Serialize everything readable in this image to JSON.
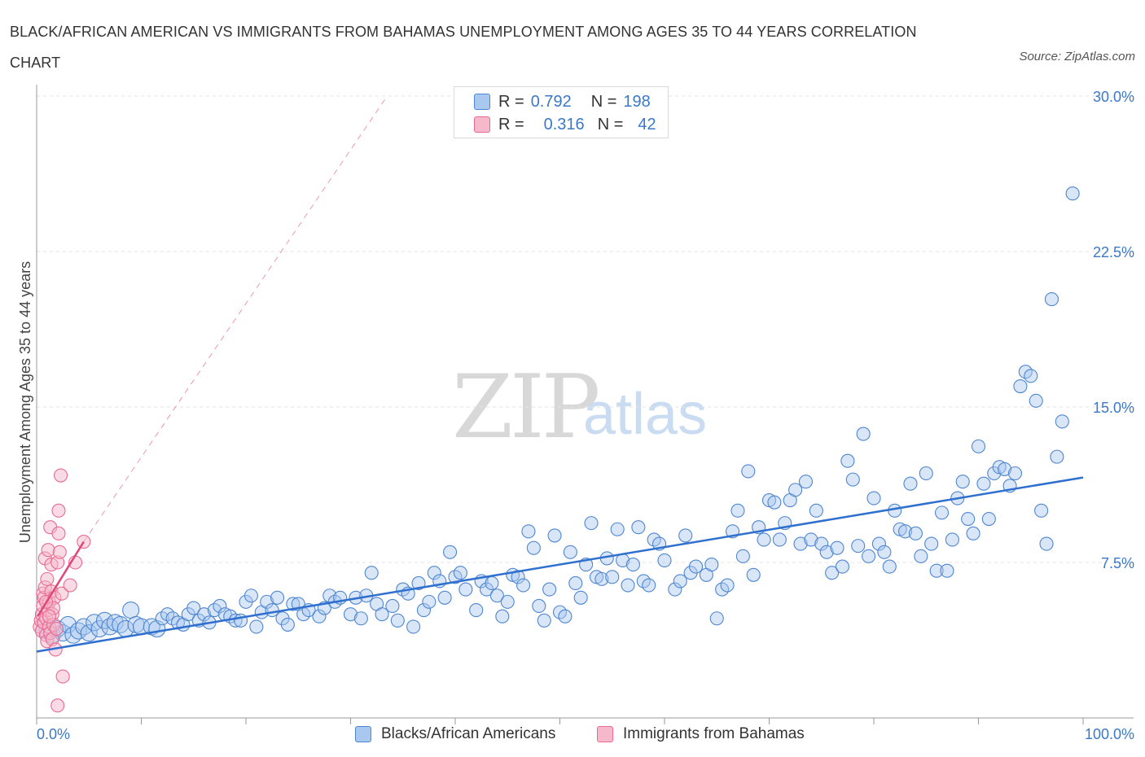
{
  "header": {
    "title": "BLACK/AFRICAN AMERICAN VS IMMIGRANTS FROM BAHAMAS UNEMPLOYMENT AMONG AGES 35 TO 44 YEARS CORRELATION CHART",
    "source": "Source: ZipAtlas.com"
  },
  "watermark": {
    "zip": "ZIP",
    "atlas": "atlas"
  },
  "legend": {
    "r_label": "R =",
    "n_label": "N =",
    "series1": {
      "r": "0.792",
      "n": "198"
    },
    "series2": {
      "r": "0.316",
      "n": "42"
    }
  },
  "bottom_legend": {
    "series1": "Blacks/African Americans",
    "series2": "Immigrants from Bahamas"
  },
  "colors": {
    "blue_fill": "#a9c8f0",
    "blue_stroke": "#4f86d0",
    "blue_line": "#2f6fce",
    "pink_fill": "#f6b8cb",
    "pink_stroke": "#e86a92",
    "pink_line": "#e0487a"
  },
  "chart_data": {
    "type": "scatter",
    "title": "",
    "xlabel": "",
    "ylabel": "Unemployment Among Ages 35 to 44 years",
    "xlim": [
      0,
      100
    ],
    "ylim": [
      0,
      30
    ],
    "x_tick_labels": [
      "0.0%",
      "100.0%"
    ],
    "y_ticks": [
      7.5,
      15.0,
      22.5,
      30.0
    ],
    "y_tick_labels": [
      "7.5%",
      "15.0%",
      "22.5%",
      "30.0%"
    ],
    "grid": true,
    "series": [
      {
        "name": "Blacks/African Americans",
        "trend": {
          "x": [
            0,
            100
          ],
          "y": [
            3.2,
            11.6
          ]
        },
        "points": [
          [
            1,
            4.2
          ],
          [
            1.5,
            4.0
          ],
          [
            2,
            4.3
          ],
          [
            2.5,
            4.1
          ],
          [
            3,
            4.5
          ],
          [
            3.5,
            4.0
          ],
          [
            4,
            4.2
          ],
          [
            4.5,
            4.4
          ],
          [
            5,
            4.1
          ],
          [
            5.5,
            4.6
          ],
          [
            6,
            4.3
          ],
          [
            6.5,
            4.7
          ],
          [
            7,
            4.4
          ],
          [
            7.5,
            4.6
          ],
          [
            8,
            4.5
          ],
          [
            8.5,
            4.3
          ],
          [
            9,
            5.2
          ],
          [
            9.5,
            4.5
          ],
          [
            10,
            4.4
          ],
          [
            11,
            4.4
          ],
          [
            11.5,
            4.3
          ],
          [
            12,
            4.8
          ],
          [
            12.5,
            5.0
          ],
          [
            13,
            4.8
          ],
          [
            13.5,
            4.6
          ],
          [
            14,
            4.5
          ],
          [
            14.5,
            5.0
          ],
          [
            15,
            5.3
          ],
          [
            15.5,
            4.7
          ],
          [
            16,
            5.0
          ],
          [
            16.5,
            4.6
          ],
          [
            17,
            5.2
          ],
          [
            17.5,
            5.4
          ],
          [
            18,
            5.0
          ],
          [
            18.5,
            4.9
          ],
          [
            19,
            4.7
          ],
          [
            19.5,
            4.7
          ],
          [
            20,
            5.6
          ],
          [
            20.5,
            5.9
          ],
          [
            21,
            4.4
          ],
          [
            21.5,
            5.1
          ],
          [
            22,
            5.6
          ],
          [
            22.5,
            5.2
          ],
          [
            23,
            5.8
          ],
          [
            23.5,
            4.8
          ],
          [
            24,
            4.5
          ],
          [
            24.5,
            5.5
          ],
          [
            25,
            5.5
          ],
          [
            25.5,
            5.0
          ],
          [
            26,
            5.2
          ],
          [
            27,
            4.9
          ],
          [
            27.5,
            5.3
          ],
          [
            28,
            5.9
          ],
          [
            28.5,
            5.6
          ],
          [
            29,
            5.8
          ],
          [
            30,
            5.0
          ],
          [
            30.5,
            5.8
          ],
          [
            31,
            4.8
          ],
          [
            31.5,
            5.9
          ],
          [
            32,
            7.0
          ],
          [
            32.5,
            5.5
          ],
          [
            33,
            5.0
          ],
          [
            34,
            5.4
          ],
          [
            34.5,
            4.7
          ],
          [
            35,
            6.2
          ],
          [
            35.5,
            6.0
          ],
          [
            36,
            4.4
          ],
          [
            36.5,
            6.5
          ],
          [
            37,
            5.2
          ],
          [
            37.5,
            5.6
          ],
          [
            38,
            7.0
          ],
          [
            38.5,
            6.6
          ],
          [
            39,
            5.8
          ],
          [
            39.5,
            8.0
          ],
          [
            40,
            6.8
          ],
          [
            40.5,
            7.0
          ],
          [
            41,
            6.2
          ],
          [
            42,
            5.2
          ],
          [
            42.5,
            6.6
          ],
          [
            43,
            6.2
          ],
          [
            43.5,
            6.5
          ],
          [
            44,
            5.9
          ],
          [
            44.5,
            4.9
          ],
          [
            45,
            5.6
          ],
          [
            45.5,
            6.9
          ],
          [
            46,
            6.8
          ],
          [
            46.5,
            6.4
          ],
          [
            47,
            9.0
          ],
          [
            47.5,
            8.2
          ],
          [
            48,
            5.4
          ],
          [
            48.5,
            4.7
          ],
          [
            49,
            6.2
          ],
          [
            49.5,
            8.8
          ],
          [
            50,
            5.1
          ],
          [
            50.5,
            4.9
          ],
          [
            51,
            8.0
          ],
          [
            51.5,
            6.5
          ],
          [
            52,
            5.8
          ],
          [
            52.5,
            7.4
          ],
          [
            53,
            9.4
          ],
          [
            53.5,
            6.8
          ],
          [
            54,
            6.7
          ],
          [
            54.5,
            7.7
          ],
          [
            55,
            6.8
          ],
          [
            55.5,
            9.1
          ],
          [
            56,
            7.6
          ],
          [
            56.5,
            6.4
          ],
          [
            57,
            7.4
          ],
          [
            57.5,
            9.2
          ],
          [
            58,
            6.6
          ],
          [
            58.5,
            6.4
          ],
          [
            59,
            8.6
          ],
          [
            59.5,
            8.4
          ],
          [
            60,
            7.6
          ],
          [
            61,
            6.2
          ],
          [
            61.5,
            6.6
          ],
          [
            62,
            8.8
          ],
          [
            62.5,
            7.0
          ],
          [
            63,
            7.3
          ],
          [
            64,
            6.9
          ],
          [
            64.5,
            7.4
          ],
          [
            65,
            4.8
          ],
          [
            65.5,
            6.2
          ],
          [
            66,
            6.4
          ],
          [
            66.5,
            9.0
          ],
          [
            67,
            10.0
          ],
          [
            67.5,
            7.8
          ],
          [
            68,
            11.9
          ],
          [
            68.5,
            6.9
          ],
          [
            69,
            9.2
          ],
          [
            69.5,
            8.6
          ],
          [
            70,
            10.5
          ],
          [
            70.5,
            10.4
          ],
          [
            71,
            8.6
          ],
          [
            71.5,
            9.4
          ],
          [
            72,
            10.5
          ],
          [
            72.5,
            11.0
          ],
          [
            73,
            8.4
          ],
          [
            73.5,
            11.4
          ],
          [
            74,
            8.6
          ],
          [
            74.5,
            10.0
          ],
          [
            75,
            8.4
          ],
          [
            75.5,
            8.0
          ],
          [
            76,
            7.0
          ],
          [
            76.5,
            8.2
          ],
          [
            77,
            7.3
          ],
          [
            77.5,
            12.4
          ],
          [
            78,
            11.5
          ],
          [
            78.5,
            8.3
          ],
          [
            79,
            13.7
          ],
          [
            79.5,
            7.8
          ],
          [
            80,
            10.6
          ],
          [
            80.5,
            8.4
          ],
          [
            81,
            8.0
          ],
          [
            81.5,
            7.3
          ],
          [
            82,
            10.0
          ],
          [
            82.5,
            9.1
          ],
          [
            83,
            9.0
          ],
          [
            83.5,
            11.3
          ],
          [
            84,
            8.9
          ],
          [
            84.5,
            7.8
          ],
          [
            85,
            11.8
          ],
          [
            85.5,
            8.4
          ],
          [
            86,
            7.1
          ],
          [
            86.5,
            9.9
          ],
          [
            87,
            7.1
          ],
          [
            87.5,
            8.6
          ],
          [
            88,
            10.6
          ],
          [
            88.5,
            11.4
          ],
          [
            89,
            9.6
          ],
          [
            89.5,
            8.9
          ],
          [
            90,
            13.1
          ],
          [
            90.5,
            11.3
          ],
          [
            91,
            9.6
          ],
          [
            91.5,
            11.8
          ],
          [
            92,
            12.1
          ],
          [
            92.5,
            12.0
          ],
          [
            93,
            11.2
          ],
          [
            93.5,
            11.8
          ],
          [
            94,
            16.0
          ],
          [
            94.5,
            16.7
          ],
          [
            95,
            16.5
          ],
          [
            95.5,
            15.3
          ],
          [
            96,
            10.0
          ],
          [
            96.5,
            8.4
          ],
          [
            97,
            20.2
          ],
          [
            97.5,
            12.6
          ],
          [
            98,
            14.3
          ],
          [
            99,
            25.3
          ]
        ]
      },
      {
        "name": "Immigrants from Bahamas",
        "trend": {
          "x": [
            0.1,
            4.5
          ],
          "y": [
            4.9,
            8.5
          ],
          "dashed_to": [
            33.5,
            30.0
          ]
        },
        "points": [
          [
            0.3,
            4.4
          ],
          [
            0.4,
            4.7
          ],
          [
            0.5,
            5.0
          ],
          [
            0.5,
            4.2
          ],
          [
            0.6,
            5.4
          ],
          [
            0.6,
            6.0
          ],
          [
            0.7,
            4.6
          ],
          [
            0.7,
            5.8
          ],
          [
            0.8,
            6.3
          ],
          [
            0.8,
            7.7
          ],
          [
            0.9,
            4.0
          ],
          [
            0.9,
            4.8
          ],
          [
            1.0,
            3.7
          ],
          [
            1.0,
            6.7
          ],
          [
            1.1,
            5.2
          ],
          [
            1.1,
            8.1
          ],
          [
            1.2,
            4.4
          ],
          [
            1.2,
            5.6
          ],
          [
            1.3,
            9.2
          ],
          [
            1.3,
            4.1
          ],
          [
            1.4,
            6.1
          ],
          [
            1.4,
            7.4
          ],
          [
            1.5,
            3.8
          ],
          [
            1.5,
            5.0
          ],
          [
            1.6,
            4.5
          ],
          [
            1.7,
            5.8
          ],
          [
            1.8,
            3.3
          ],
          [
            1.9,
            4.3
          ],
          [
            2.0,
            7.5
          ],
          [
            2.1,
            10.0
          ],
          [
            2.1,
            8.9
          ],
          [
            2.2,
            8.0
          ],
          [
            2.3,
            11.7
          ],
          [
            2.4,
            6.0
          ],
          [
            2.5,
            2.0
          ],
          [
            2.0,
            0.6
          ],
          [
            1.6,
            5.3
          ],
          [
            1.2,
            4.9
          ],
          [
            0.9,
            5.6
          ],
          [
            3.2,
            6.4
          ],
          [
            3.7,
            7.5
          ],
          [
            4.5,
            8.5
          ]
        ]
      }
    ]
  }
}
